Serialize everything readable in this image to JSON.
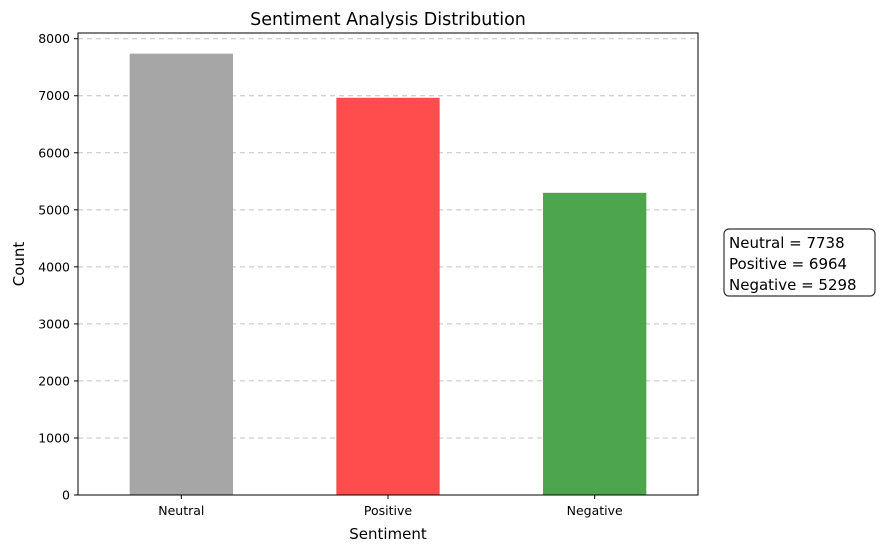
{
  "chart_data": {
    "type": "bar",
    "title": "Sentiment Analysis Distribution",
    "xlabel": "Sentiment",
    "ylabel": "Count",
    "categories": [
      "Neutral",
      "Positive",
      "Negative"
    ],
    "values": [
      7738,
      6964,
      5298
    ],
    "colors": [
      "#a6a6a6",
      "#ff4d4d",
      "#4da64d"
    ],
    "ylim": [
      0,
      8100
    ],
    "yticks": [
      0,
      1000,
      2000,
      3000,
      4000,
      5000,
      6000,
      7000,
      8000
    ],
    "grid": "y-dashed",
    "annotation_lines": [
      "Neutral = 7738",
      "Positive = 6964",
      "Negative = 5298"
    ]
  }
}
